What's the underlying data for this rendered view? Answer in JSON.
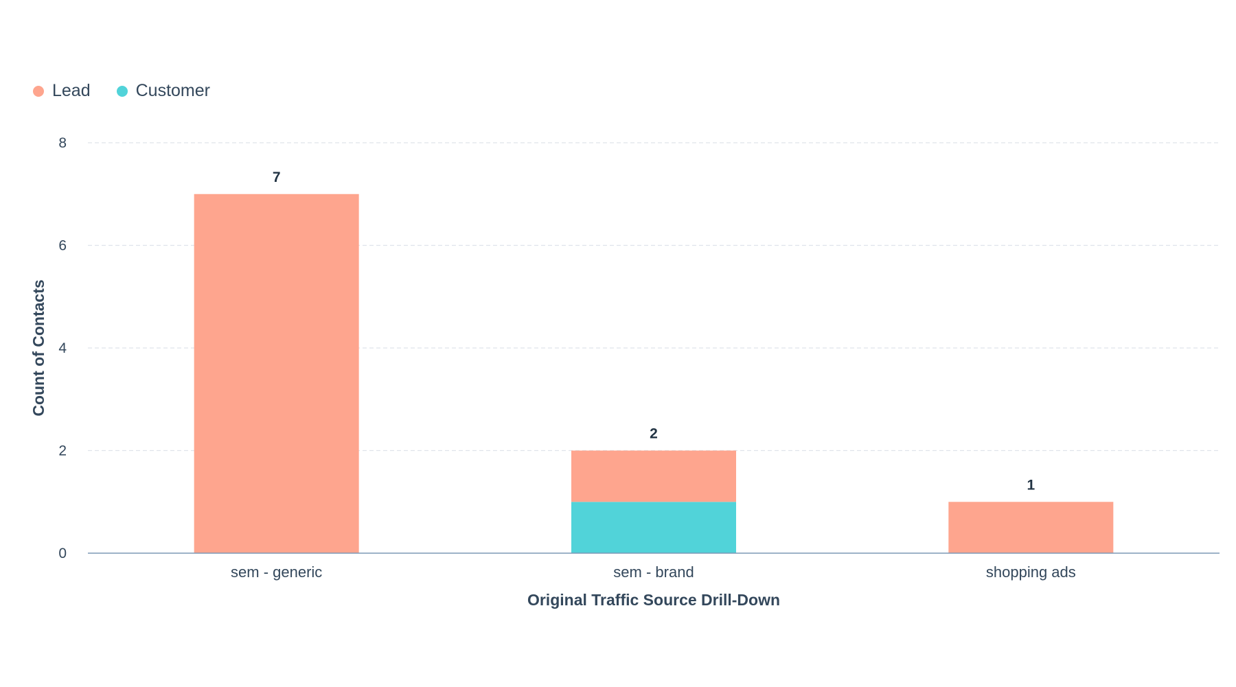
{
  "chart_data": {
    "type": "bar",
    "stacked": true,
    "categories": [
      "sem - generic",
      "sem - brand",
      "shopping ads"
    ],
    "series": [
      {
        "name": "Customer",
        "values": [
          0,
          1,
          0
        ],
        "color": "#51d3d9"
      },
      {
        "name": "Lead",
        "values": [
          7,
          1,
          1
        ],
        "color": "#fea58e"
      }
    ],
    "totals": [
      "7",
      "2",
      "1"
    ],
    "xlabel": "Original Traffic Source Drill-Down",
    "ylabel": "Count of Contacts",
    "ylim": [
      0,
      8
    ],
    "yticks": [
      "0",
      "2",
      "4",
      "6",
      "8"
    ],
    "grid": true,
    "legend": {
      "position": "top-left",
      "entries": [
        {
          "label": "Lead",
          "color": "#fea58e"
        },
        {
          "label": "Customer",
          "color": "#51d3d9"
        }
      ]
    }
  }
}
